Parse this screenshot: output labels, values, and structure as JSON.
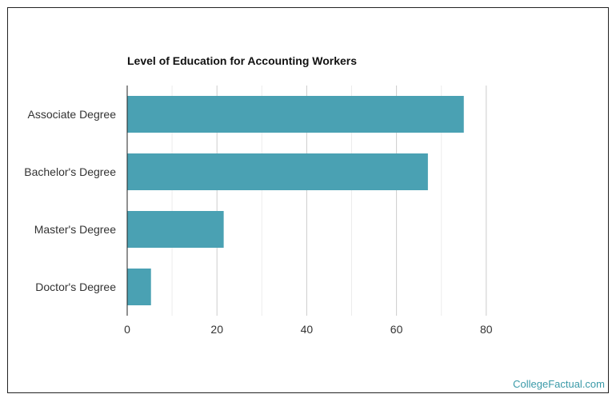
{
  "chart_data": {
    "type": "bar",
    "orientation": "horizontal",
    "title": "Level of Education for Accounting Workers",
    "categories": [
      "Associate Degree",
      "Bachelor's Degree",
      "Master's Degree",
      "Doctor's Degree"
    ],
    "values": [
      75,
      67,
      21.5,
      5.3
    ],
    "xlabel": "",
    "ylabel": "",
    "xlim": [
      0,
      100
    ],
    "xticks": [
      0,
      20,
      40,
      60,
      80
    ],
    "grid": true,
    "bar_color": "#4aa1b3"
  },
  "watermark": "CollegeFactual.com"
}
